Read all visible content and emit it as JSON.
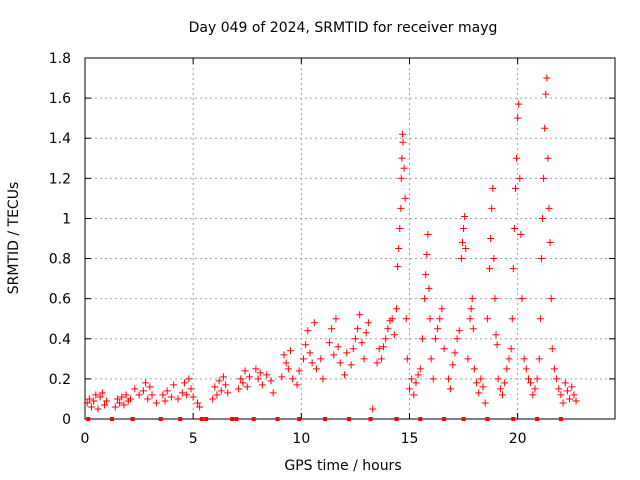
{
  "chart_data": {
    "type": "scatter",
    "title": "Day 049 of 2024, SRMTID for receiver mayg",
    "xlabel": "GPS time / hours",
    "ylabel": "SRMTID / TECUs",
    "xlim": [
      0,
      24.5
    ],
    "ylim": [
      0,
      1.8
    ],
    "xticks": [
      0,
      5,
      10,
      15,
      20
    ],
    "yticks": [
      0,
      0.2,
      0.4,
      0.6,
      0.8,
      1,
      1.2,
      1.4,
      1.6,
      1.8
    ],
    "ytick_labels": [
      "0",
      "0.2",
      "0.4",
      "0.6",
      "0.8",
      "1",
      "1.2",
      "1.4",
      "1.6",
      "1.8"
    ],
    "grid": true,
    "marker": "+",
    "color": "#ff0000",
    "zero_markers_x": [
      0.15,
      1.25,
      2.2,
      3.5,
      4.4,
      5.4,
      5.6,
      6.8,
      7.0,
      7.8,
      8.9,
      9.9,
      11.1,
      12.2,
      13.2,
      14.4,
      15.5,
      16.6,
      17.5,
      18.6,
      19.8,
      20.9,
      22.0
    ],
    "series": [
      {
        "name": "SRMTID",
        "points": [
          [
            0.1,
            0.08
          ],
          [
            0.2,
            0.1
          ],
          [
            0.3,
            0.06
          ],
          [
            0.4,
            0.09
          ],
          [
            0.5,
            0.12
          ],
          [
            0.6,
            0.05
          ],
          [
            0.7,
            0.11
          ],
          [
            0.8,
            0.13
          ],
          [
            0.9,
            0.07
          ],
          [
            1.0,
            0.09
          ],
          [
            1.4,
            0.06
          ],
          [
            1.5,
            0.1
          ],
          [
            1.6,
            0.08
          ],
          [
            1.7,
            0.11
          ],
          [
            1.8,
            0.07
          ],
          [
            1.9,
            0.12
          ],
          [
            2.0,
            0.09
          ],
          [
            2.1,
            0.1
          ],
          [
            2.3,
            0.15
          ],
          [
            2.5,
            0.12
          ],
          [
            2.7,
            0.14
          ],
          [
            2.8,
            0.18
          ],
          [
            2.9,
            0.1
          ],
          [
            3.0,
            0.16
          ],
          [
            3.1,
            0.12
          ],
          [
            3.3,
            0.08
          ],
          [
            3.6,
            0.12
          ],
          [
            3.7,
            0.09
          ],
          [
            3.8,
            0.14
          ],
          [
            4.0,
            0.11
          ],
          [
            4.1,
            0.17
          ],
          [
            4.3,
            0.1
          ],
          [
            4.5,
            0.13
          ],
          [
            4.6,
            0.18
          ],
          [
            4.7,
            0.12
          ],
          [
            4.8,
            0.2
          ],
          [
            4.9,
            0.15
          ],
          [
            5.0,
            0.11
          ],
          [
            5.2,
            0.08
          ],
          [
            5.3,
            0.06
          ],
          [
            5.9,
            0.1
          ],
          [
            6.0,
            0.16
          ],
          [
            6.1,
            0.12
          ],
          [
            6.2,
            0.19
          ],
          [
            6.3,
            0.14
          ],
          [
            6.4,
            0.21
          ],
          [
            6.5,
            0.17
          ],
          [
            6.6,
            0.13
          ],
          [
            7.1,
            0.15
          ],
          [
            7.2,
            0.2
          ],
          [
            7.3,
            0.18
          ],
          [
            7.4,
            0.24
          ],
          [
            7.5,
            0.16
          ],
          [
            7.6,
            0.21
          ],
          [
            7.9,
            0.25
          ],
          [
            8.0,
            0.2
          ],
          [
            8.1,
            0.23
          ],
          [
            8.2,
            0.17
          ],
          [
            8.4,
            0.22
          ],
          [
            8.6,
            0.19
          ],
          [
            8.7,
            0.13
          ],
          [
            9.1,
            0.21
          ],
          [
            9.2,
            0.32
          ],
          [
            9.3,
            0.28
          ],
          [
            9.4,
            0.25
          ],
          [
            9.5,
            0.34
          ],
          [
            9.6,
            0.2
          ],
          [
            9.8,
            0.17
          ],
          [
            9.9,
            0.24
          ],
          [
            10.1,
            0.3
          ],
          [
            10.2,
            0.37
          ],
          [
            10.3,
            0.44
          ],
          [
            10.4,
            0.33
          ],
          [
            10.5,
            0.28
          ],
          [
            10.6,
            0.48
          ],
          [
            10.7,
            0.25
          ],
          [
            10.9,
            0.3
          ],
          [
            11.0,
            0.2
          ],
          [
            11.3,
            0.38
          ],
          [
            11.4,
            0.45
          ],
          [
            11.5,
            0.32
          ],
          [
            11.6,
            0.5
          ],
          [
            11.7,
            0.36
          ],
          [
            11.8,
            0.28
          ],
          [
            12.0,
            0.22
          ],
          [
            12.1,
            0.33
          ],
          [
            12.3,
            0.27
          ],
          [
            12.4,
            0.35
          ],
          [
            12.5,
            0.4
          ],
          [
            12.6,
            0.45
          ],
          [
            12.7,
            0.52
          ],
          [
            12.8,
            0.38
          ],
          [
            12.9,
            0.3
          ],
          [
            13.0,
            0.43
          ],
          [
            13.1,
            0.48
          ],
          [
            13.3,
            0.05
          ],
          [
            13.5,
            0.28
          ],
          [
            13.6,
            0.35
          ],
          [
            13.7,
            0.3
          ],
          [
            13.8,
            0.36
          ],
          [
            13.9,
            0.4
          ],
          [
            14.0,
            0.45
          ],
          [
            14.1,
            0.49
          ],
          [
            14.2,
            0.5
          ],
          [
            14.3,
            0.42
          ],
          [
            14.4,
            0.55
          ],
          [
            14.45,
            0.76
          ],
          [
            14.5,
            0.85
          ],
          [
            14.55,
            0.95
          ],
          [
            14.6,
            1.05
          ],
          [
            14.62,
            1.2
          ],
          [
            14.65,
            1.3
          ],
          [
            14.68,
            1.42
          ],
          [
            14.7,
            1.38
          ],
          [
            14.75,
            1.25
          ],
          [
            14.8,
            1.1
          ],
          [
            14.85,
            0.5
          ],
          [
            14.9,
            0.3
          ],
          [
            15.0,
            0.15
          ],
          [
            15.1,
            0.2
          ],
          [
            15.2,
            0.12
          ],
          [
            15.3,
            0.18
          ],
          [
            15.4,
            0.22
          ],
          [
            15.5,
            0.25
          ],
          [
            15.6,
            0.4
          ],
          [
            15.7,
            0.6
          ],
          [
            15.75,
            0.72
          ],
          [
            15.8,
            0.82
          ],
          [
            15.85,
            0.92
          ],
          [
            15.9,
            0.65
          ],
          [
            15.95,
            0.5
          ],
          [
            16.0,
            0.3
          ],
          [
            16.1,
            0.2
          ],
          [
            16.2,
            0.4
          ],
          [
            16.3,
            0.45
          ],
          [
            16.4,
            0.5
          ],
          [
            16.5,
            0.55
          ],
          [
            16.6,
            0.35
          ],
          [
            16.8,
            0.2
          ],
          [
            16.9,
            0.15
          ],
          [
            17.0,
            0.27
          ],
          [
            17.1,
            0.33
          ],
          [
            17.2,
            0.4
          ],
          [
            17.3,
            0.44
          ],
          [
            17.4,
            0.8
          ],
          [
            17.45,
            0.88
          ],
          [
            17.5,
            0.95
          ],
          [
            17.55,
            1.01
          ],
          [
            17.6,
            0.85
          ],
          [
            17.7,
            0.3
          ],
          [
            17.8,
            0.5
          ],
          [
            17.85,
            0.55
          ],
          [
            17.9,
            0.6
          ],
          [
            17.95,
            0.45
          ],
          [
            18.0,
            0.25
          ],
          [
            18.1,
            0.18
          ],
          [
            18.2,
            0.13
          ],
          [
            18.3,
            0.2
          ],
          [
            18.4,
            0.16
          ],
          [
            18.5,
            0.08
          ],
          [
            18.6,
            0.5
          ],
          [
            18.7,
            0.75
          ],
          [
            18.75,
            0.9
          ],
          [
            18.8,
            1.05
          ],
          [
            18.85,
            1.15
          ],
          [
            18.9,
            0.8
          ],
          [
            18.95,
            0.6
          ],
          [
            19.0,
            0.42
          ],
          [
            19.05,
            0.37
          ],
          [
            19.1,
            0.2
          ],
          [
            19.2,
            0.15
          ],
          [
            19.3,
            0.12
          ],
          [
            19.4,
            0.18
          ],
          [
            19.5,
            0.25
          ],
          [
            19.6,
            0.3
          ],
          [
            19.7,
            0.35
          ],
          [
            19.75,
            0.5
          ],
          [
            19.8,
            0.75
          ],
          [
            19.85,
            0.95
          ],
          [
            19.9,
            1.15
          ],
          [
            19.95,
            1.3
          ],
          [
            20.0,
            1.5
          ],
          [
            20.05,
            1.57
          ],
          [
            20.1,
            1.2
          ],
          [
            20.15,
            0.92
          ],
          [
            20.2,
            0.6
          ],
          [
            20.3,
            0.3
          ],
          [
            20.4,
            0.25
          ],
          [
            20.5,
            0.2
          ],
          [
            20.6,
            0.18
          ],
          [
            20.7,
            0.12
          ],
          [
            20.8,
            0.15
          ],
          [
            20.9,
            0.2
          ],
          [
            21.0,
            0.3
          ],
          [
            21.05,
            0.5
          ],
          [
            21.1,
            0.8
          ],
          [
            21.15,
            1.0
          ],
          [
            21.2,
            1.2
          ],
          [
            21.25,
            1.45
          ],
          [
            21.3,
            1.62
          ],
          [
            21.35,
            1.7
          ],
          [
            21.4,
            1.3
          ],
          [
            21.45,
            1.05
          ],
          [
            21.5,
            0.88
          ],
          [
            21.55,
            0.6
          ],
          [
            21.6,
            0.35
          ],
          [
            21.7,
            0.25
          ],
          [
            21.8,
            0.2
          ],
          [
            21.9,
            0.15
          ],
          [
            22.0,
            0.12
          ],
          [
            22.1,
            0.08
          ],
          [
            22.2,
            0.18
          ],
          [
            22.3,
            0.14
          ],
          [
            22.4,
            0.1
          ],
          [
            22.5,
            0.16
          ],
          [
            22.6,
            0.12
          ],
          [
            22.7,
            0.09
          ]
        ]
      }
    ]
  }
}
